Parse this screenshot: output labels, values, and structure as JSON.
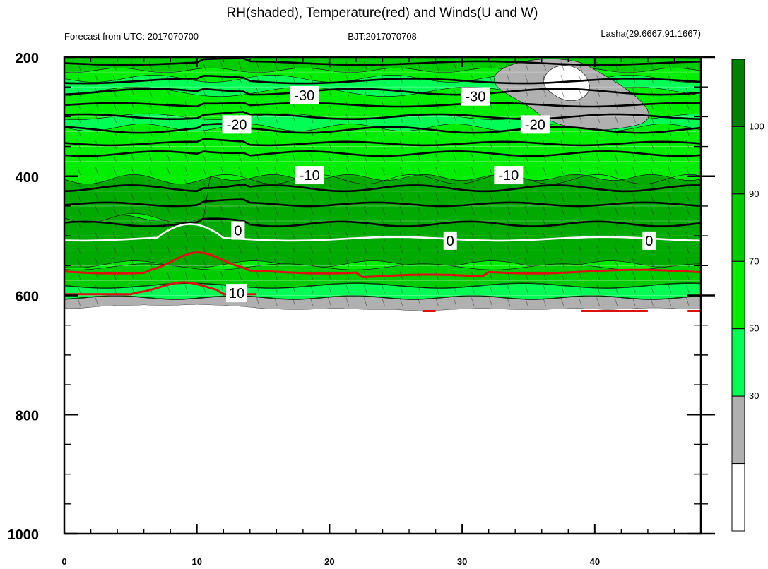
{
  "chart_data": {
    "type": "heatmap",
    "title": "RH(shaded), Temperature(red) and Winds(U and W)",
    "subtitle_left": "Forecast from UTC: 2017070700",
    "subtitle_center": "BJT:2017070708",
    "subtitle_right": "Lasha(29.6667,91.1667)",
    "x_range": [
      0,
      48
    ],
    "x_ticks": [
      "0",
      "10",
      "20",
      "30",
      "40"
    ],
    "y_range": [
      200,
      1000
    ],
    "y_ticks": [
      "200",
      "400",
      "600",
      "800",
      "1000"
    ],
    "colorbar": {
      "levels": [
        "30",
        "50",
        "70",
        "90",
        "100"
      ],
      "colors": [
        "#ffffff",
        "#b0b0b0",
        "#00ff55",
        "#00ee00",
        "#00cc00",
        "#00aa00",
        "#007f00"
      ]
    },
    "contour_labels": [
      {
        "text": "-30",
        "x": 18.1,
        "y": 264
      },
      {
        "text": "-30",
        "x": 31.0,
        "y": 266
      },
      {
        "text": "-20",
        "x": 13.0,
        "y": 313
      },
      {
        "text": "-20",
        "x": 35.5,
        "y": 313
      },
      {
        "text": "-10",
        "x": 18.5,
        "y": 398
      },
      {
        "text": "-10",
        "x": 33.5,
        "y": 398
      },
      {
        "text": "0",
        "x": 13.1,
        "y": 491
      },
      {
        "text": "0",
        "x": 29.1,
        "y": 508
      },
      {
        "text": "0",
        "x": 44.1,
        "y": 508
      },
      {
        "text": "10",
        "x": 13.0,
        "y": 596
      }
    ],
    "surface_pressure": [
      622,
      622,
      620,
      618,
      617,
      617,
      616,
      617,
      617,
      616,
      615,
      616,
      617,
      618,
      620,
      622,
      623,
      624,
      624,
      623,
      622,
      622,
      623,
      624,
      624,
      624,
      625,
      626,
      625,
      624,
      623,
      622,
      622,
      623,
      624,
      624,
      624,
      623,
      622,
      622,
      623,
      624,
      623,
      622,
      621,
      621,
      622,
      623,
      623
    ]
  }
}
